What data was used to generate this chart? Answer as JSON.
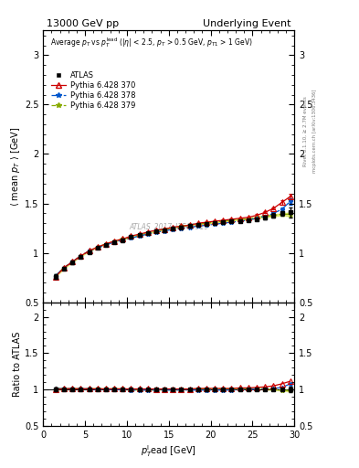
{
  "title_left": "13000 GeV pp",
  "title_right": "Underlying Event",
  "watermark": "ATLAS_2017_I1509919",
  "right_label": "Rivet 3.1.10, ≥ 2.7M events",
  "right_label2": "mcplots.cern.ch [arXiv:1306.3436]",
  "ylim_main": [
    0.5,
    3.25
  ],
  "ylim_ratio": [
    0.5,
    2.2
  ],
  "xlim": [
    0,
    30
  ],
  "yticks_main": [
    0.5,
    1.0,
    1.5,
    2.0,
    2.5,
    3.0
  ],
  "yticks_ratio": [
    0.5,
    1.0,
    1.5,
    2.0
  ],
  "xticks": [
    0,
    5,
    10,
    15,
    20,
    25,
    30
  ],
  "data_x": [
    1.5,
    2.5,
    3.5,
    4.5,
    5.5,
    6.5,
    7.5,
    8.5,
    9.5,
    10.5,
    11.5,
    12.5,
    13.5,
    14.5,
    15.5,
    16.5,
    17.5,
    18.5,
    19.5,
    20.5,
    21.5,
    22.5,
    23.5,
    24.5,
    25.5,
    26.5,
    27.5,
    28.5,
    29.5
  ],
  "data_y": [
    0.76,
    0.84,
    0.9,
    0.96,
    1.01,
    1.05,
    1.08,
    1.11,
    1.13,
    1.16,
    1.18,
    1.2,
    1.22,
    1.23,
    1.25,
    1.26,
    1.27,
    1.28,
    1.29,
    1.3,
    1.31,
    1.32,
    1.32,
    1.33,
    1.34,
    1.36,
    1.38,
    1.4,
    1.41
  ],
  "data_yerr": [
    0.02,
    0.01,
    0.01,
    0.01,
    0.01,
    0.01,
    0.01,
    0.01,
    0.01,
    0.01,
    0.01,
    0.01,
    0.01,
    0.01,
    0.01,
    0.01,
    0.01,
    0.01,
    0.01,
    0.01,
    0.01,
    0.01,
    0.01,
    0.01,
    0.01,
    0.02,
    0.02,
    0.02,
    0.05
  ],
  "py370_y": [
    0.76,
    0.85,
    0.91,
    0.97,
    1.02,
    1.06,
    1.09,
    1.12,
    1.14,
    1.17,
    1.19,
    1.21,
    1.23,
    1.24,
    1.26,
    1.27,
    1.28,
    1.3,
    1.31,
    1.32,
    1.33,
    1.34,
    1.35,
    1.36,
    1.38,
    1.41,
    1.45,
    1.51,
    1.57
  ],
  "py370_yerr": [
    0.01,
    0.01,
    0.005,
    0.005,
    0.005,
    0.005,
    0.005,
    0.005,
    0.005,
    0.005,
    0.005,
    0.005,
    0.005,
    0.005,
    0.005,
    0.005,
    0.005,
    0.005,
    0.005,
    0.005,
    0.005,
    0.005,
    0.005,
    0.005,
    0.01,
    0.01,
    0.01,
    0.02,
    0.03
  ],
  "py378_y": [
    0.77,
    0.85,
    0.91,
    0.97,
    1.02,
    1.05,
    1.08,
    1.11,
    1.13,
    1.15,
    1.17,
    1.19,
    1.21,
    1.22,
    1.24,
    1.25,
    1.26,
    1.27,
    1.28,
    1.29,
    1.3,
    1.31,
    1.32,
    1.33,
    1.35,
    1.37,
    1.4,
    1.44,
    1.52
  ],
  "py378_yerr": [
    0.01,
    0.01,
    0.005,
    0.005,
    0.005,
    0.005,
    0.005,
    0.005,
    0.005,
    0.005,
    0.005,
    0.005,
    0.005,
    0.005,
    0.005,
    0.005,
    0.005,
    0.005,
    0.005,
    0.005,
    0.005,
    0.005,
    0.005,
    0.005,
    0.01,
    0.01,
    0.01,
    0.02,
    0.03
  ],
  "py379_y": [
    0.77,
    0.85,
    0.91,
    0.97,
    1.02,
    1.06,
    1.09,
    1.12,
    1.14,
    1.16,
    1.18,
    1.2,
    1.22,
    1.24,
    1.25,
    1.27,
    1.28,
    1.29,
    1.3,
    1.31,
    1.32,
    1.33,
    1.34,
    1.34,
    1.36,
    1.37,
    1.38,
    1.39,
    1.39
  ],
  "py379_yerr": [
    0.01,
    0.01,
    0.005,
    0.005,
    0.005,
    0.005,
    0.005,
    0.005,
    0.005,
    0.005,
    0.005,
    0.005,
    0.005,
    0.005,
    0.005,
    0.005,
    0.005,
    0.005,
    0.005,
    0.005,
    0.005,
    0.005,
    0.005,
    0.005,
    0.01,
    0.01,
    0.01,
    0.01,
    0.02
  ],
  "color_atlas": "#000000",
  "color_370": "#cc0000",
  "color_378": "#0055cc",
  "color_379": "#88aa00",
  "fill_379_color": "#ccdd00"
}
